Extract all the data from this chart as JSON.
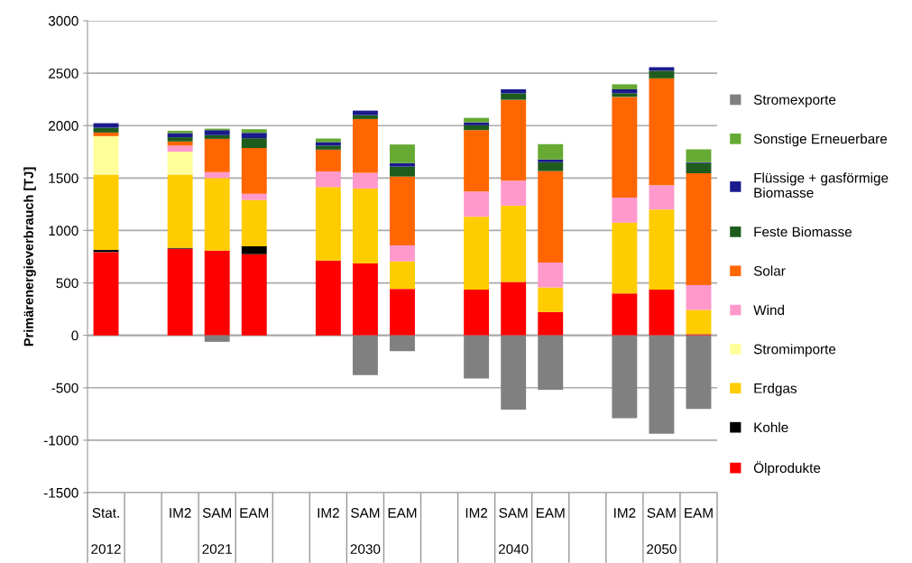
{
  "chart_data": {
    "type": "bar",
    "stacked": true,
    "ylabel": "Primärenergieverbrauch [TJ]",
    "categories": [
      "Stat.",
      null,
      "IM2",
      "SAM",
      "EAM",
      null,
      "IM2",
      "SAM",
      "EAM",
      null,
      "IM2",
      "SAM",
      "EAM",
      null,
      "IM2",
      "SAM",
      "EAM"
    ],
    "annotations": [
      "2012",
      "2021",
      "2030",
      "2040",
      "2050"
    ],
    "ylim": [
      -1500,
      3000
    ],
    "yticks": [
      -1500,
      -1000,
      -500,
      0,
      500,
      1000,
      1500,
      2000,
      2500,
      3000
    ],
    "grid": "y",
    "legend": "right",
    "series": [
      {
        "name": "Ölprodukte",
        "color": "#ff0000",
        "values": [
          794,
          null,
          826,
          809,
          774,
          null,
          714,
          686,
          443,
          null,
          437,
          509,
          223,
          null,
          400,
          437,
          11
        ]
      },
      {
        "name": "Kohle",
        "color": "#000000",
        "values": [
          20,
          null,
          8,
          0,
          75,
          null,
          0,
          0,
          0,
          null,
          0,
          0,
          0,
          null,
          0,
          0,
          0
        ]
      },
      {
        "name": "Erdgas",
        "color": "#ffcc00",
        "values": [
          720,
          null,
          700,
          691,
          442,
          null,
          700,
          714,
          263,
          null,
          694,
          728,
          234,
          null,
          674,
          763,
          232
        ]
      },
      {
        "name": "Stromimporte",
        "color": "#ffff99",
        "values": [
          366,
          null,
          217,
          0,
          0,
          null,
          0,
          0,
          0,
          null,
          0,
          0,
          0,
          null,
          0,
          0,
          0
        ]
      },
      {
        "name": "Wind",
        "color": "#ff99cc",
        "values": [
          0,
          null,
          58,
          57,
          60,
          null,
          149,
          151,
          151,
          null,
          240,
          237,
          237,
          null,
          240,
          231,
          237
        ]
      },
      {
        "name": "Solar",
        "color": "#ff6600",
        "values": [
          34,
          null,
          40,
          317,
          435,
          null,
          208,
          512,
          657,
          null,
          586,
          772,
          872,
          null,
          960,
          1020,
          1066
        ]
      },
      {
        "name": "Feste Biomasse",
        "color": "#1e5c1e",
        "values": [
          46,
          null,
          40,
          35,
          94,
          null,
          38,
          37,
          95,
          null,
          46,
          62,
          85,
          null,
          35,
          72,
          97
        ]
      },
      {
        "name": "Flüssige + gasförmige Biomasse",
        "color": "#1a1a8c",
        "values": [
          43,
          null,
          40,
          48,
          51,
          null,
          34,
          43,
          34,
          null,
          28,
          38,
          26,
          null,
          37,
          34,
          8
        ]
      },
      {
        "name": "Sonstige Erneuerbare",
        "color": "#66aa33",
        "values": [
          0,
          null,
          22,
          14,
          35,
          null,
          34,
          0,
          177,
          null,
          43,
          0,
          146,
          null,
          48,
          0,
          123
        ]
      },
      {
        "name": "Stromexporte",
        "color": "#808080",
        "values": [
          0,
          null,
          0,
          -62,
          0,
          null,
          0,
          -380,
          -151,
          null,
          -411,
          -709,
          -519,
          null,
          -791,
          -938,
          -702
        ]
      }
    ]
  }
}
